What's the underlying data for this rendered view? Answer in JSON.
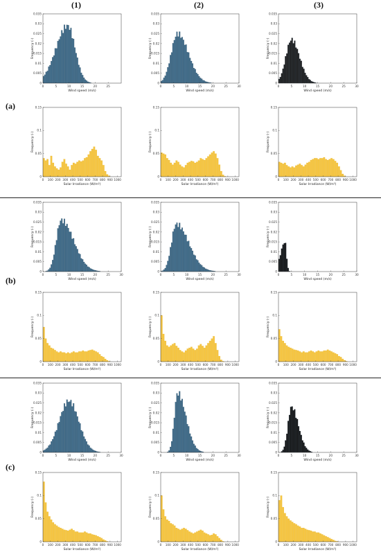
{
  "column_headers": [
    "(1)",
    "(2)",
    "(3)"
  ],
  "row_labels": [
    "(a)",
    "(b)",
    "(c)"
  ],
  "chart_data": [
    {
      "id": "a1w",
      "type": "bar",
      "row": 0,
      "col": 0,
      "kind": "wind",
      "color": "#3f6d8c",
      "xlabel": "Wind speed (m/s)",
      "ylabel": "Frequency (-)",
      "xlim": [
        0,
        30
      ],
      "ylim": [
        0,
        0.035
      ],
      "xticks": [
        0,
        5,
        10,
        15,
        20,
        25
      ],
      "yticks": [
        0,
        0.005,
        0.01,
        0.015,
        0.02,
        0.025,
        0.03,
        0.035
      ],
      "bin_width": 0.5,
      "peak": 9.5,
      "mode_value": 0.029,
      "skew": 0.8,
      "spread": 3.6
    },
    {
      "id": "a2w",
      "type": "bar",
      "row": 0,
      "col": 1,
      "kind": "wind",
      "color": "#3f6d8c",
      "xlabel": "Wind speed (m/s)",
      "ylabel": "Frequency (-)",
      "xlim": [
        0,
        30
      ],
      "ylim": [
        0,
        0.035
      ],
      "xticks": [
        0,
        5,
        10,
        15,
        20,
        25,
        30
      ],
      "yticks": [
        0,
        0.005,
        0.01,
        0.015,
        0.02,
        0.025,
        0.03,
        0.035
      ],
      "bin_width": 0.5,
      "peak": 6.5,
      "mode_value": 0.025,
      "skew": 1.3,
      "spread": 3.2
    },
    {
      "id": "a3w",
      "type": "bar",
      "row": 0,
      "col": 2,
      "kind": "wind",
      "color": "#1a1a1a",
      "xlabel": "Wind speed (m/s)",
      "ylabel": "Frequency (-)",
      "xlim": [
        0,
        30
      ],
      "ylim": [
        0,
        0.035
      ],
      "xticks": [
        0,
        5,
        10,
        15,
        20,
        25,
        30
      ],
      "yticks": [
        0,
        0.005,
        0.01,
        0.015,
        0.02,
        0.025,
        0.03,
        0.035
      ],
      "bin_width": 0.5,
      "peak": 5,
      "mode_value": 0.022,
      "skew": 1.2,
      "spread": 2.6
    },
    {
      "id": "a1s",
      "type": "bar",
      "row": 0,
      "col": 0,
      "kind": "solar",
      "color": "#f5c542",
      "xlabel": "Solar Irradiance (W/m²)",
      "ylabel": "Frequency (-)",
      "xlim": [
        0,
        1050
      ],
      "ylim": [
        0,
        0.15
      ],
      "xticks": [
        0,
        100,
        200,
        300,
        400,
        500,
        600,
        700,
        800,
        900,
        1000
      ],
      "yticks": [
        0,
        0.05,
        0.1,
        0.15
      ],
      "bin_width": 25,
      "values": [
        0.04,
        0.035,
        0.038,
        0.025,
        0.045,
        0.03,
        0.022,
        0.018,
        0.015,
        0.02,
        0.032,
        0.038,
        0.028,
        0.022,
        0.015,
        0.025,
        0.03,
        0.028,
        0.032,
        0.035,
        0.033,
        0.035,
        0.04,
        0.042,
        0.048,
        0.055,
        0.06,
        0.065,
        0.058,
        0.045,
        0.04,
        0.035,
        0.025,
        0.012,
        0.005,
        0.002,
        0,
        0,
        0,
        0,
        0,
        0
      ]
    },
    {
      "id": "a2s",
      "type": "bar",
      "row": 0,
      "col": 1,
      "kind": "solar",
      "color": "#f5c542",
      "xlabel": "Solar Irradiance (W/m²)",
      "ylabel": "Frequency (-)",
      "xlim": [
        0,
        1050
      ],
      "ylim": [
        0,
        0.15
      ],
      "xticks": [
        0,
        100,
        200,
        300,
        400,
        500,
        600,
        700,
        800,
        900,
        1000
      ],
      "yticks": [
        0,
        0.05,
        0.1,
        0.15
      ],
      "bin_width": 25,
      "values": [
        0.052,
        0.05,
        0.048,
        0.04,
        0.036,
        0.03,
        0.026,
        0.03,
        0.035,
        0.032,
        0.026,
        0.022,
        0.02,
        0.025,
        0.03,
        0.032,
        0.034,
        0.033,
        0.03,
        0.032,
        0.035,
        0.04,
        0.038,
        0.036,
        0.04,
        0.044,
        0.048,
        0.052,
        0.055,
        0.05,
        0.04,
        0.026,
        0.012,
        0.004,
        0.001,
        0,
        0,
        0,
        0,
        0,
        0,
        0
      ]
    },
    {
      "id": "a3s",
      "type": "bar",
      "row": 0,
      "col": 2,
      "kind": "solar",
      "color": "#f5c542",
      "xlabel": "Solar Irradiance (W/m²)",
      "ylabel": "Frequency (-)",
      "xlim": [
        0,
        1050
      ],
      "ylim": [
        0,
        0.15
      ],
      "xticks": [
        0,
        100,
        200,
        300,
        400,
        500,
        600,
        700,
        800,
        900,
        1000
      ],
      "yticks": [
        0,
        0.05,
        0.1,
        0.15
      ],
      "bin_width": 25,
      "values": [
        0.032,
        0.03,
        0.028,
        0.03,
        0.025,
        0.022,
        0.02,
        0.022,
        0.02,
        0.024,
        0.026,
        0.028,
        0.025,
        0.022,
        0.026,
        0.03,
        0.032,
        0.036,
        0.038,
        0.04,
        0.04,
        0.038,
        0.04,
        0.04,
        0.042,
        0.038,
        0.036,
        0.038,
        0.04,
        0.038,
        0.034,
        0.03,
        0.022,
        0.014,
        0.006,
        0.002,
        0,
        0,
        0,
        0,
        0,
        0
      ]
    },
    {
      "id": "b1w",
      "type": "bar",
      "row": 1,
      "col": 0,
      "kind": "wind",
      "color": "#3f6d8c",
      "xlabel": "Wind speed (m/s)",
      "ylabel": "Frequency (-)",
      "xlim": [
        0,
        30
      ],
      "ylim": [
        0,
        0.035
      ],
      "xticks": [
        0,
        5,
        10,
        15,
        20,
        25,
        30
      ],
      "yticks": [
        0,
        0.005,
        0.01,
        0.015,
        0.02,
        0.025,
        0.03,
        0.035
      ],
      "bin_width": 0.5,
      "peak": 7,
      "mode_value": 0.026,
      "skew": 1.6,
      "spread": 3.0
    },
    {
      "id": "b2w",
      "type": "bar",
      "row": 1,
      "col": 1,
      "kind": "wind",
      "color": "#3f6d8c",
      "xlabel": "Wind speed (m/s)",
      "ylabel": "Frequency (-)",
      "xlim": [
        0,
        30
      ],
      "ylim": [
        0,
        0.035
      ],
      "xticks": [
        0,
        5,
        10,
        15,
        20,
        25,
        30
      ],
      "yticks": [
        0,
        0.005,
        0.01,
        0.015,
        0.02,
        0.025,
        0.03,
        0.035
      ],
      "bin_width": 0.5,
      "peak": 6,
      "mode_value": 0.024,
      "skew": 1.6,
      "spread": 3.0
    },
    {
      "id": "b3w",
      "type": "bar",
      "row": 1,
      "col": 2,
      "kind": "wind",
      "color": "#111111",
      "xlabel": "Wind speed (m/s)",
      "ylabel": "Frequency (-)",
      "xlim": [
        0,
        30
      ],
      "ylim": [
        0,
        0.035
      ],
      "xticks": [
        0,
        5,
        10,
        15,
        20,
        25,
        30
      ],
      "yticks": [
        0,
        0.005,
        0.01,
        0.015,
        0.02,
        0.025,
        0.03,
        0.035
      ],
      "bin_width": 0.5,
      "peak": 2.5,
      "mode_value": 0.015,
      "skew": 0.6,
      "spread": 1.0
    },
    {
      "id": "b1s",
      "type": "bar",
      "row": 1,
      "col": 0,
      "kind": "solar",
      "color": "#f5c542",
      "xlabel": "Solar Irradiance (W/m²)",
      "ylabel": "Frequency (-)",
      "xlim": [
        0,
        1050
      ],
      "ylim": [
        0,
        0.15
      ],
      "xticks": [
        0,
        100,
        200,
        300,
        400,
        500,
        600,
        700,
        800,
        900,
        1000
      ],
      "yticks": [
        0,
        0.05,
        0.1,
        0.15
      ],
      "bin_width": 25,
      "values": [
        0.075,
        0.05,
        0.04,
        0.035,
        0.03,
        0.028,
        0.025,
        0.022,
        0.02,
        0.022,
        0.02,
        0.02,
        0.018,
        0.02,
        0.018,
        0.02,
        0.022,
        0.02,
        0.02,
        0.022,
        0.022,
        0.024,
        0.022,
        0.022,
        0.024,
        0.025,
        0.026,
        0.024,
        0.022,
        0.02,
        0.016,
        0.012,
        0.01,
        0.006,
        0.003,
        0.001,
        0,
        0,
        0,
        0,
        0,
        0
      ]
    },
    {
      "id": "b2s",
      "type": "bar",
      "row": 1,
      "col": 1,
      "kind": "solar",
      "color": "#f5c542",
      "xlabel": "Solar Irradiance (W/m²)",
      "ylabel": "Frequency (-)",
      "xlim": [
        0,
        1050
      ],
      "ylim": [
        0,
        0.15
      ],
      "xticks": [
        0,
        100,
        200,
        300,
        400,
        500,
        600,
        700,
        800,
        900,
        1000
      ],
      "yticks": [
        0,
        0.05,
        0.1,
        0.15
      ],
      "bin_width": 25,
      "values": [
        0.1,
        0.06,
        0.045,
        0.035,
        0.032,
        0.035,
        0.038,
        0.04,
        0.034,
        0.03,
        0.025,
        0.022,
        0.02,
        0.024,
        0.028,
        0.03,
        0.032,
        0.028,
        0.025,
        0.028,
        0.035,
        0.038,
        0.034,
        0.03,
        0.035,
        0.04,
        0.045,
        0.05,
        0.055,
        0.04,
        0.025,
        0.012,
        0.004,
        0.001,
        0,
        0,
        0,
        0,
        0,
        0,
        0,
        0
      ]
    },
    {
      "id": "b3s",
      "type": "bar",
      "row": 1,
      "col": 2,
      "kind": "solar",
      "color": "#f5c542",
      "xlabel": "Solar Irradiance (W/m²)",
      "ylabel": "Frequency (-)",
      "xlim": [
        0,
        1050
      ],
      "ylim": [
        0,
        0.15
      ],
      "xticks": [
        0,
        100,
        200,
        300,
        400,
        500,
        600,
        700,
        800,
        900,
        1000
      ],
      "yticks": [
        0,
        0.05,
        0.1,
        0.15
      ],
      "bin_width": 25,
      "values": [
        0.07,
        0.055,
        0.045,
        0.04,
        0.035,
        0.032,
        0.03,
        0.028,
        0.026,
        0.025,
        0.024,
        0.022,
        0.02,
        0.022,
        0.02,
        0.02,
        0.022,
        0.024,
        0.022,
        0.02,
        0.022,
        0.024,
        0.022,
        0.022,
        0.024,
        0.024,
        0.026,
        0.024,
        0.022,
        0.02,
        0.018,
        0.016,
        0.012,
        0.01,
        0.006,
        0.003,
        0.001,
        0,
        0,
        0,
        0,
        0
      ]
    },
    {
      "id": "c1w",
      "type": "bar",
      "row": 2,
      "col": 0,
      "kind": "wind",
      "color": "#3f6d8c",
      "xlabel": "Wind speed (m/s)",
      "ylabel": "Frequency (-)",
      "xlim": [
        0,
        30
      ],
      "ylim": [
        0,
        0.035
      ],
      "xticks": [
        0,
        5,
        10,
        15,
        20,
        25,
        30
      ],
      "yticks": [
        0,
        0.005,
        0.01,
        0.015,
        0.02,
        0.025,
        0.03,
        0.035
      ],
      "bin_width": 0.5,
      "peak": 10,
      "mode_value": 0.026,
      "skew": 1.0,
      "spread": 3.8
    },
    {
      "id": "c2w",
      "type": "bar",
      "row": 2,
      "col": 1,
      "kind": "wind",
      "color": "#3f6d8c",
      "xlabel": "Wind speed (m/s)",
      "ylabel": "Frequency (-)",
      "xlim": [
        0,
        30
      ],
      "ylim": [
        0,
        0.035
      ],
      "xticks": [
        0,
        5,
        10,
        15,
        20,
        25,
        30
      ],
      "yticks": [
        0,
        0.005,
        0.01,
        0.015,
        0.02,
        0.025,
        0.03,
        0.035
      ],
      "bin_width": 0.5,
      "peak": 6.5,
      "mode_value": 0.03,
      "skew": 1.6,
      "spread": 2.0
    },
    {
      "id": "c3w",
      "type": "bar",
      "row": 2,
      "col": 2,
      "kind": "wind",
      "color": "#111111",
      "xlabel": "Wind speed (m/s)",
      "ylabel": "Frequency (-)",
      "xlim": [
        0,
        30
      ],
      "ylim": [
        0,
        0.035
      ],
      "xticks": [
        0,
        5,
        10,
        15,
        20,
        25,
        30
      ],
      "yticks": [
        0,
        0.005,
        0.01,
        0.015,
        0.02,
        0.025,
        0.03,
        0.035
      ],
      "bin_width": 0.5,
      "peak": 5,
      "mode_value": 0.023,
      "skew": 1.4,
      "spread": 1.9
    },
    {
      "id": "c1s",
      "type": "bar",
      "row": 2,
      "col": 0,
      "kind": "solar",
      "color": "#f5c542",
      "xlabel": "Solar Irradiance (W/m²)",
      "ylabel": "Frequency (-)",
      "xlim": [
        0,
        1050
      ],
      "ylim": [
        0,
        0.15
      ],
      "xticks": [
        0,
        100,
        200,
        300,
        400,
        500,
        600,
        700,
        800,
        900,
        1000
      ],
      "yticks": [
        0,
        0.05,
        0.1,
        0.15
      ],
      "bin_width": 25,
      "values": [
        0.13,
        0.085,
        0.065,
        0.055,
        0.048,
        0.042,
        0.038,
        0.035,
        0.032,
        0.03,
        0.028,
        0.026,
        0.025,
        0.024,
        0.026,
        0.028,
        0.025,
        0.022,
        0.022,
        0.02,
        0.02,
        0.02,
        0.022,
        0.02,
        0.018,
        0.018,
        0.016,
        0.015,
        0.014,
        0.012,
        0.01,
        0.008,
        0.005,
        0.003,
        0.001,
        0,
        0,
        0,
        0,
        0,
        0,
        0
      ]
    },
    {
      "id": "c2s",
      "type": "bar",
      "row": 2,
      "col": 1,
      "kind": "solar",
      "color": "#f5c542",
      "xlabel": "Solar Irradiance (W/m²)",
      "ylabel": "Frequency (-)",
      "xlim": [
        0,
        1050
      ],
      "ylim": [
        0,
        0.15
      ],
      "xticks": [
        0,
        100,
        200,
        300,
        400,
        500,
        600,
        700,
        800,
        900,
        1000
      ],
      "yticks": [
        0,
        0.05,
        0.1,
        0.15
      ],
      "bin_width": 25,
      "values": [
        0.1,
        0.07,
        0.055,
        0.048,
        0.045,
        0.04,
        0.038,
        0.035,
        0.03,
        0.028,
        0.026,
        0.028,
        0.03,
        0.028,
        0.025,
        0.022,
        0.02,
        0.018,
        0.02,
        0.022,
        0.024,
        0.026,
        0.024,
        0.02,
        0.018,
        0.016,
        0.014,
        0.015,
        0.018,
        0.016,
        0.012,
        0.008,
        0.004,
        0.001,
        0,
        0,
        0,
        0,
        0,
        0,
        0,
        0
      ]
    },
    {
      "id": "c3s",
      "type": "bar",
      "row": 2,
      "col": 2,
      "kind": "solar",
      "color": "#f5c542",
      "xlabel": "Solar Irradiance (W/m²)",
      "ylabel": "Frequency (-)",
      "xlim": [
        0,
        1050
      ],
      "ylim": [
        0,
        0.15
      ],
      "xticks": [
        0,
        100,
        200,
        300,
        400,
        500,
        600,
        700,
        800,
        900,
        1000
      ],
      "yticks": [
        0,
        0.05,
        0.1,
        0.15
      ],
      "bin_width": 25,
      "values": [
        0.09,
        0.1,
        0.075,
        0.062,
        0.055,
        0.05,
        0.046,
        0.043,
        0.04,
        0.038,
        0.035,
        0.033,
        0.03,
        0.03,
        0.028,
        0.026,
        0.025,
        0.024,
        0.022,
        0.022,
        0.02,
        0.02,
        0.018,
        0.016,
        0.014,
        0.012,
        0.01,
        0.008,
        0.006,
        0.004,
        0.002,
        0.001,
        0,
        0,
        0,
        0,
        0,
        0,
        0,
        0,
        0,
        0
      ]
    }
  ]
}
